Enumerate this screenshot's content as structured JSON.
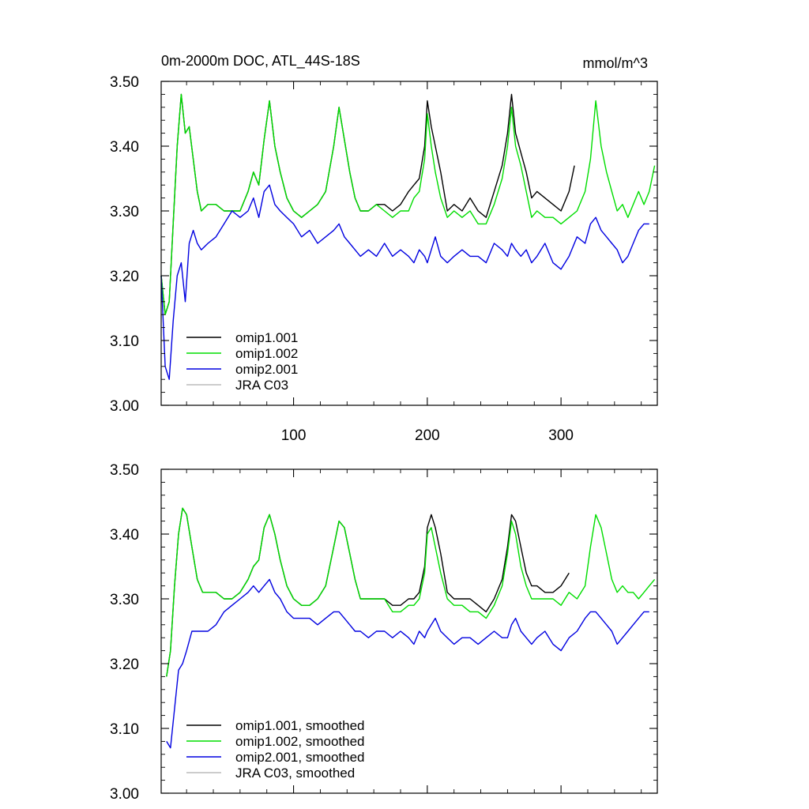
{
  "chart_data": [
    {
      "type": "line",
      "title": "0m-2000m DOC, ATL_44S-18S",
      "units": "mmol/m^3",
      "xlim": [
        1,
        372
      ],
      "ylim": [
        3.0,
        3.5
      ],
      "xticks": [
        100,
        200,
        300
      ],
      "xtick_labels": [
        "100",
        "200",
        "300"
      ],
      "yticks": [
        3.0,
        3.1,
        3.2,
        3.3,
        3.4,
        3.5
      ],
      "ytick_labels": [
        "3.00",
        "3.10",
        "3.20",
        "3.30",
        "3.40",
        "3.50"
      ],
      "legend": "bottom-left",
      "grid": false,
      "series": [
        {
          "name": "omip1.001",
          "color": "#000000",
          "x": [
            1,
            4,
            7,
            10,
            13,
            16,
            19,
            22,
            25,
            28,
            31,
            36,
            42,
            48,
            54,
            60,
            66,
            70,
            74,
            78,
            82,
            86,
            90,
            95,
            100,
            106,
            112,
            118,
            124,
            130,
            134,
            138,
            142,
            146,
            150,
            156,
            162,
            168,
            174,
            180,
            186,
            190,
            194,
            198,
            200,
            203,
            206,
            210,
            215,
            220,
            226,
            232,
            238,
            244,
            250,
            256,
            260,
            263,
            266,
            270,
            274,
            278,
            282,
            288,
            294,
            300,
            306,
            310
          ],
          "values": [
            3.2,
            3.14,
            3.16,
            3.28,
            3.4,
            3.48,
            3.42,
            3.43,
            3.38,
            3.33,
            3.3,
            3.31,
            3.31,
            3.3,
            3.3,
            3.3,
            3.33,
            3.36,
            3.34,
            3.41,
            3.47,
            3.4,
            3.36,
            3.32,
            3.3,
            3.29,
            3.3,
            3.31,
            3.33,
            3.4,
            3.46,
            3.41,
            3.36,
            3.32,
            3.3,
            3.3,
            3.31,
            3.31,
            3.3,
            3.31,
            3.33,
            3.34,
            3.35,
            3.4,
            3.47,
            3.43,
            3.4,
            3.36,
            3.3,
            3.31,
            3.3,
            3.32,
            3.3,
            3.29,
            3.33,
            3.37,
            3.42,
            3.48,
            3.42,
            3.39,
            3.36,
            3.32,
            3.33,
            3.32,
            3.31,
            3.3,
            3.33,
            3.37
          ]
        },
        {
          "name": "omip1.002",
          "color": "#00dd00",
          "x": [
            1,
            4,
            7,
            10,
            13,
            16,
            19,
            22,
            25,
            28,
            31,
            36,
            42,
            48,
            54,
            60,
            66,
            70,
            74,
            78,
            82,
            86,
            90,
            95,
            100,
            106,
            112,
            118,
            124,
            130,
            134,
            138,
            142,
            146,
            150,
            156,
            162,
            168,
            174,
            180,
            186,
            190,
            194,
            198,
            200,
            203,
            206,
            210,
            215,
            220,
            226,
            232,
            238,
            244,
            250,
            256,
            260,
            263,
            266,
            270,
            274,
            278,
            282,
            288,
            294,
            300,
            306,
            312,
            318,
            322,
            326,
            330,
            334,
            338,
            342,
            346,
            350,
            354,
            358,
            362,
            366,
            370
          ],
          "values": [
            3.2,
            3.14,
            3.16,
            3.28,
            3.4,
            3.48,
            3.42,
            3.43,
            3.38,
            3.33,
            3.3,
            3.31,
            3.31,
            3.3,
            3.3,
            3.3,
            3.33,
            3.36,
            3.34,
            3.41,
            3.47,
            3.4,
            3.36,
            3.32,
            3.3,
            3.29,
            3.3,
            3.31,
            3.33,
            3.4,
            3.46,
            3.41,
            3.36,
            3.32,
            3.3,
            3.3,
            3.31,
            3.3,
            3.29,
            3.3,
            3.3,
            3.32,
            3.33,
            3.38,
            3.45,
            3.4,
            3.36,
            3.32,
            3.29,
            3.3,
            3.29,
            3.3,
            3.28,
            3.28,
            3.31,
            3.35,
            3.4,
            3.46,
            3.4,
            3.37,
            3.33,
            3.29,
            3.3,
            3.29,
            3.29,
            3.28,
            3.29,
            3.3,
            3.33,
            3.38,
            3.47,
            3.4,
            3.36,
            3.33,
            3.3,
            3.31,
            3.29,
            3.31,
            3.33,
            3.31,
            3.33,
            3.37
          ]
        },
        {
          "name": "omip2.001",
          "color": "#0000e0",
          "x": [
            1,
            4,
            7,
            10,
            13,
            16,
            19,
            22,
            25,
            28,
            31,
            36,
            42,
            48,
            54,
            60,
            66,
            70,
            74,
            78,
            82,
            86,
            90,
            95,
            100,
            106,
            112,
            118,
            124,
            130,
            134,
            138,
            142,
            146,
            150,
            156,
            162,
            168,
            174,
            180,
            186,
            190,
            194,
            198,
            200,
            203,
            206,
            210,
            215,
            220,
            226,
            232,
            238,
            244,
            250,
            256,
            260,
            263,
            266,
            270,
            274,
            278,
            282,
            288,
            294,
            300,
            306,
            312,
            318,
            322,
            326,
            330,
            334,
            338,
            342,
            346,
            350,
            354,
            358,
            362,
            366,
            370
          ],
          "values": [
            3.2,
            3.06,
            3.04,
            3.13,
            3.2,
            3.22,
            3.16,
            3.25,
            3.27,
            3.25,
            3.24,
            3.25,
            3.26,
            3.28,
            3.3,
            3.29,
            3.3,
            3.32,
            3.29,
            3.33,
            3.34,
            3.31,
            3.3,
            3.29,
            3.28,
            3.26,
            3.27,
            3.25,
            3.26,
            3.27,
            3.28,
            3.26,
            3.25,
            3.24,
            3.23,
            3.24,
            3.23,
            3.25,
            3.23,
            3.24,
            3.23,
            3.22,
            3.24,
            3.23,
            3.22,
            3.24,
            3.26,
            3.23,
            3.22,
            3.23,
            3.24,
            3.23,
            3.23,
            3.22,
            3.25,
            3.24,
            3.23,
            3.25,
            3.24,
            3.23,
            3.24,
            3.22,
            3.23,
            3.25,
            3.22,
            3.21,
            3.23,
            3.26,
            3.25,
            3.28,
            3.29,
            3.27,
            3.26,
            3.25,
            3.24,
            3.22,
            3.23,
            3.25,
            3.27,
            3.28,
            3.28,
            null
          ]
        },
        {
          "name": "JRA C03",
          "color": "#bbbbbb",
          "x": [],
          "values": []
        }
      ]
    },
    {
      "type": "line",
      "title": "",
      "xlim": [
        1,
        372
      ],
      "ylim": [
        3.0,
        3.5
      ],
      "xticks": [
        100,
        200,
        300
      ],
      "xtick_labels": [],
      "yticks": [
        3.0,
        3.1,
        3.2,
        3.3,
        3.4,
        3.5
      ],
      "ytick_labels": [
        "3.00",
        "3.10",
        "3.20",
        "3.30",
        "3.40",
        "3.50"
      ],
      "legend": "bottom-left",
      "grid": false,
      "series": [
        {
          "name": "omip1.001, smoothed",
          "color": "#000000",
          "x": [
            5,
            8,
            11,
            14,
            17,
            20,
            24,
            28,
            32,
            36,
            42,
            48,
            54,
            60,
            66,
            70,
            74,
            78,
            82,
            86,
            90,
            95,
            100,
            106,
            112,
            118,
            124,
            130,
            134,
            138,
            142,
            146,
            150,
            156,
            162,
            168,
            174,
            180,
            186,
            190,
            194,
            198,
            200,
            203,
            206,
            210,
            215,
            220,
            226,
            232,
            238,
            244,
            250,
            256,
            260,
            263,
            266,
            270,
            274,
            278,
            282,
            288,
            294,
            300,
            306
          ],
          "values": [
            3.18,
            3.22,
            3.32,
            3.4,
            3.44,
            3.43,
            3.38,
            3.33,
            3.31,
            3.31,
            3.31,
            3.3,
            3.3,
            3.31,
            3.33,
            3.35,
            3.36,
            3.41,
            3.43,
            3.4,
            3.36,
            3.32,
            3.3,
            3.29,
            3.29,
            3.3,
            3.32,
            3.38,
            3.42,
            3.41,
            3.37,
            3.33,
            3.3,
            3.3,
            3.3,
            3.3,
            3.29,
            3.29,
            3.3,
            3.3,
            3.31,
            3.35,
            3.41,
            3.43,
            3.41,
            3.37,
            3.31,
            3.3,
            3.3,
            3.3,
            3.29,
            3.28,
            3.3,
            3.33,
            3.38,
            3.43,
            3.42,
            3.38,
            3.34,
            3.32,
            3.32,
            3.31,
            3.31,
            3.32,
            3.34
          ]
        },
        {
          "name": "omip1.002, smoothed",
          "color": "#00dd00",
          "x": [
            5,
            8,
            11,
            14,
            17,
            20,
            24,
            28,
            32,
            36,
            42,
            48,
            54,
            60,
            66,
            70,
            74,
            78,
            82,
            86,
            90,
            95,
            100,
            106,
            112,
            118,
            124,
            130,
            134,
            138,
            142,
            146,
            150,
            156,
            162,
            168,
            174,
            180,
            186,
            190,
            194,
            198,
            200,
            203,
            206,
            210,
            215,
            220,
            226,
            232,
            238,
            244,
            250,
            256,
            260,
            263,
            266,
            270,
            274,
            278,
            282,
            288,
            294,
            300,
            306,
            312,
            318,
            322,
            326,
            330,
            334,
            338,
            342,
            346,
            350,
            354,
            358,
            362,
            366,
            370
          ],
          "values": [
            3.18,
            3.22,
            3.32,
            3.4,
            3.44,
            3.43,
            3.38,
            3.33,
            3.31,
            3.31,
            3.31,
            3.3,
            3.3,
            3.31,
            3.33,
            3.35,
            3.36,
            3.41,
            3.43,
            3.4,
            3.36,
            3.32,
            3.3,
            3.29,
            3.29,
            3.3,
            3.32,
            3.38,
            3.42,
            3.41,
            3.37,
            3.33,
            3.3,
            3.3,
            3.3,
            3.3,
            3.28,
            3.28,
            3.29,
            3.29,
            3.3,
            3.34,
            3.4,
            3.41,
            3.38,
            3.34,
            3.3,
            3.29,
            3.29,
            3.28,
            3.28,
            3.27,
            3.29,
            3.32,
            3.37,
            3.42,
            3.4,
            3.35,
            3.32,
            3.3,
            3.3,
            3.3,
            3.3,
            3.29,
            3.31,
            3.3,
            3.32,
            3.38,
            3.43,
            3.41,
            3.37,
            3.33,
            3.31,
            3.32,
            3.31,
            3.31,
            3.3,
            3.31,
            3.32,
            3.33
          ]
        },
        {
          "name": "omip2.001, smoothed",
          "color": "#0000e0",
          "x": [
            5,
            8,
            11,
            14,
            17,
            20,
            24,
            28,
            32,
            36,
            42,
            48,
            54,
            60,
            66,
            70,
            74,
            78,
            82,
            86,
            90,
            95,
            100,
            106,
            112,
            118,
            124,
            130,
            134,
            138,
            142,
            146,
            150,
            156,
            162,
            168,
            174,
            180,
            186,
            190,
            194,
            198,
            200,
            203,
            206,
            210,
            215,
            220,
            226,
            232,
            238,
            244,
            250,
            256,
            260,
            263,
            266,
            270,
            274,
            278,
            282,
            288,
            294,
            300,
            306,
            312,
            318,
            322,
            326,
            330,
            334,
            338,
            342,
            346,
            350,
            354,
            358,
            362,
            366,
            370
          ],
          "values": [
            3.08,
            3.07,
            3.13,
            3.19,
            3.2,
            3.22,
            3.25,
            3.25,
            3.25,
            3.25,
            3.26,
            3.28,
            3.29,
            3.3,
            3.31,
            3.32,
            3.31,
            3.32,
            3.33,
            3.31,
            3.3,
            3.28,
            3.27,
            3.27,
            3.27,
            3.26,
            3.27,
            3.28,
            3.28,
            3.27,
            3.26,
            3.25,
            3.25,
            3.24,
            3.25,
            3.25,
            3.24,
            3.25,
            3.24,
            3.23,
            3.25,
            3.24,
            3.25,
            3.26,
            3.27,
            3.25,
            3.24,
            3.23,
            3.24,
            3.24,
            3.23,
            3.24,
            3.25,
            3.24,
            3.24,
            3.26,
            3.27,
            3.25,
            3.24,
            3.23,
            3.24,
            3.25,
            3.23,
            3.22,
            3.24,
            3.25,
            3.27,
            3.28,
            3.28,
            3.27,
            3.26,
            3.25,
            3.23,
            3.24,
            3.25,
            3.26,
            3.27,
            3.28,
            3.28,
            null
          ]
        },
        {
          "name": "JRA C03, smoothed",
          "color": "#bbbbbb",
          "x": [],
          "values": []
        }
      ]
    }
  ]
}
